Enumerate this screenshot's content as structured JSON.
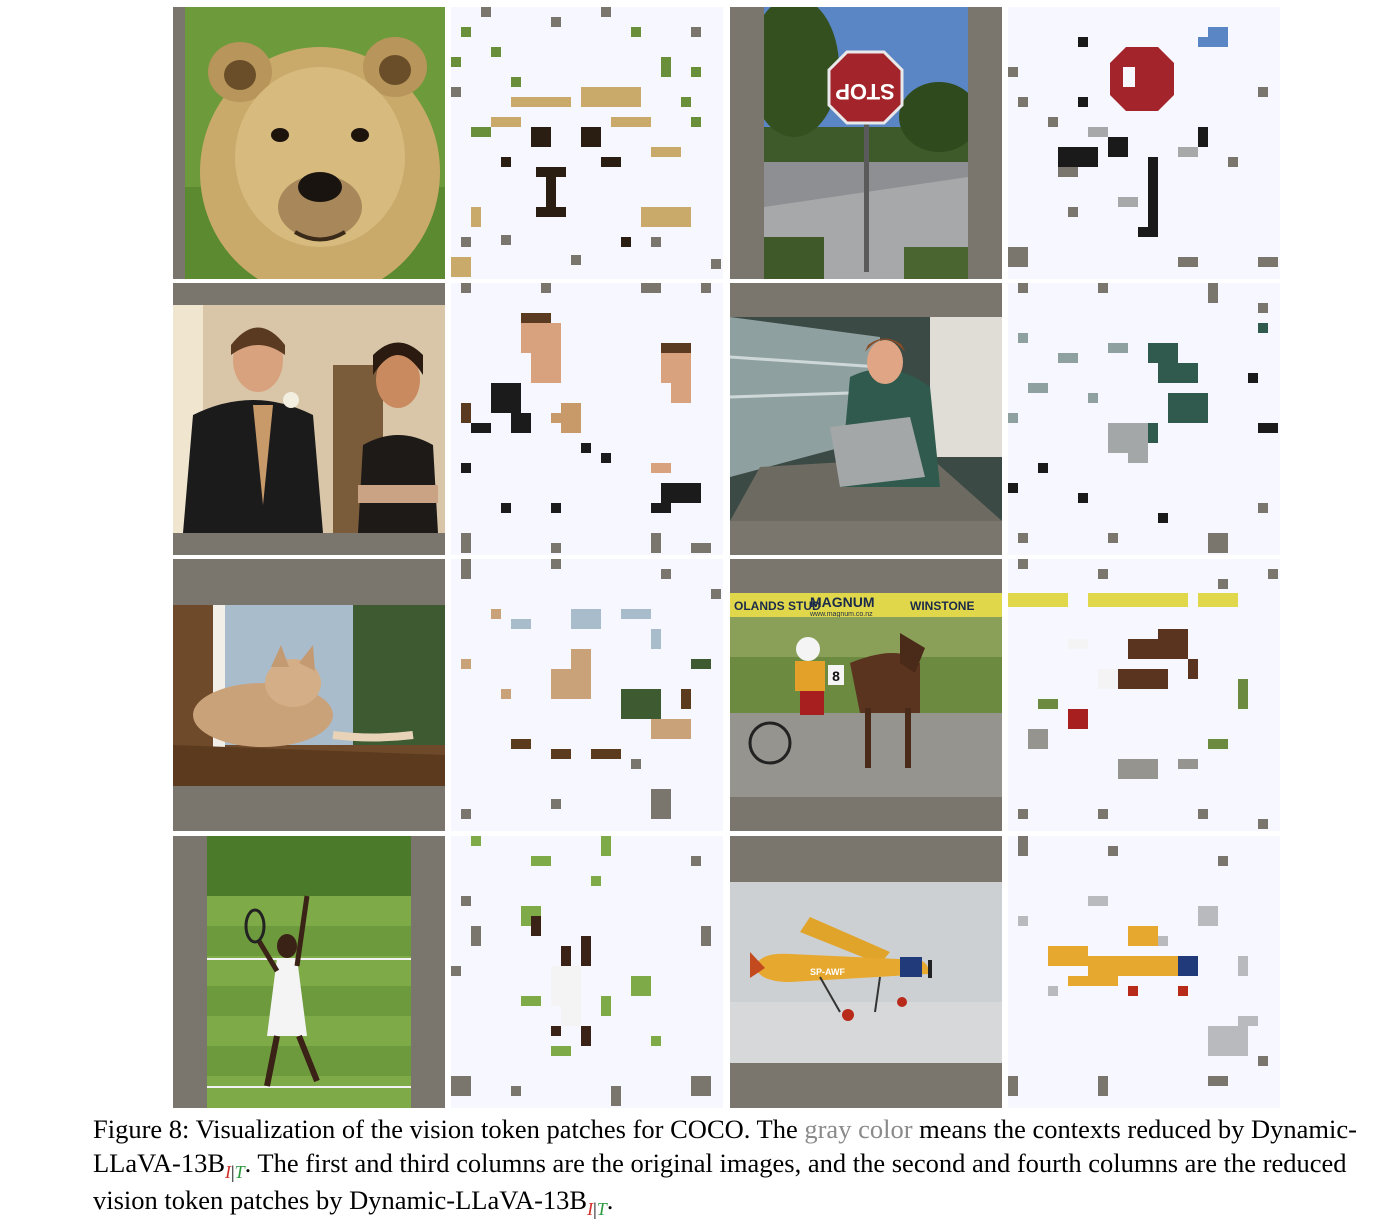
{
  "caption": {
    "part1": "Figure 8: Visualization of the vision token patches for COCO. The ",
    "gray_phrase": "gray color",
    "part2": " means the contexts reduced by Dynamic-LLaVA-13B",
    "part3": ". The first and third columns are the original images, and the second and fourth columns are the reduced vision token patches by Dynamic-LLaVA-13B",
    "part4": ".",
    "sub_i": "I",
    "sub_bar": "|",
    "sub_t": "T"
  },
  "sign_text": "STOP",
  "banner": {
    "left": "OLANDS STUD",
    "middle": "MAGNUM",
    "right": "WINSTONE",
    "url": "www.magnum.co.nz"
  },
  "cart_number": "8",
  "plane_reg": "SP-AWF",
  "colors": {
    "reduced_gray": "#7a766d",
    "kept_background": "#f7f8ff",
    "gray_text": "#8a8a8a",
    "sub_i_red": "#d3302a",
    "sub_t_green": "#2e9a3f"
  }
}
